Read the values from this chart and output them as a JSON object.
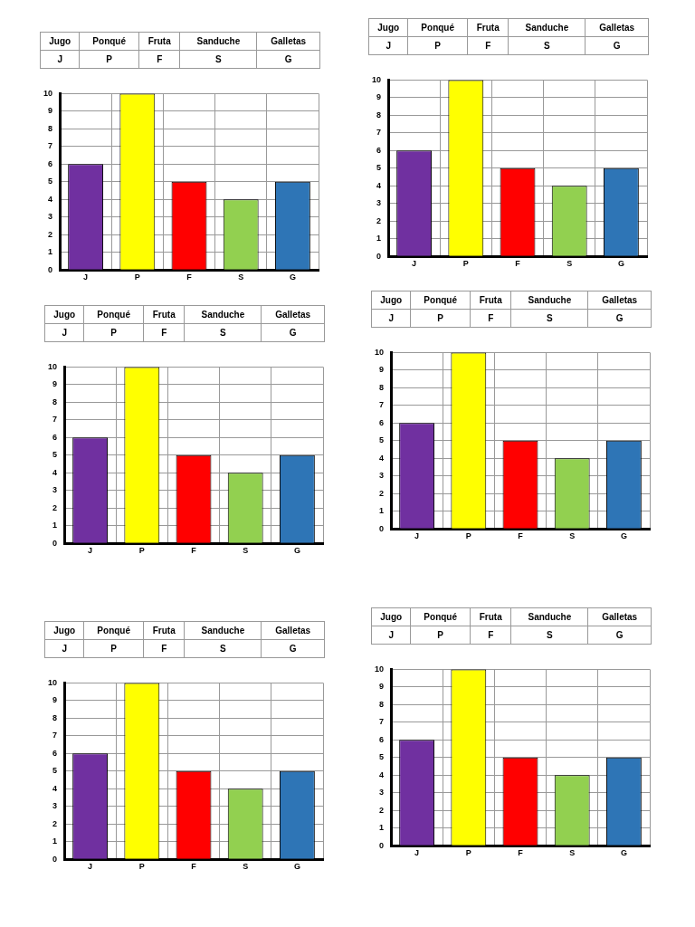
{
  "chart_data": [
    {
      "type": "bar",
      "categories": [
        "J",
        "P",
        "F",
        "S",
        "G"
      ],
      "values": [
        6,
        10,
        5,
        4,
        5
      ],
      "colors": [
        "#7030a0",
        "#ffff00",
        "#ff0000",
        "#92d050",
        "#2e75b6"
      ],
      "annotations": [
        "Jugo",
        "Ponqué",
        "Fruta",
        "Sanduche",
        "Galletas"
      ],
      "ylim": [
        0,
        10
      ],
      "yticks": [
        0,
        1,
        2,
        3,
        4,
        5,
        6,
        7,
        8,
        9,
        10
      ],
      "grid": true,
      "legend": false
    },
    {
      "type": "bar",
      "categories": [
        "J",
        "P",
        "F",
        "S",
        "G"
      ],
      "values": [
        6,
        10,
        5,
        4,
        5
      ],
      "colors": [
        "#7030a0",
        "#ffff00",
        "#ff0000",
        "#92d050",
        "#2e75b6"
      ],
      "annotations": [
        "Jugo",
        "Ponqué",
        "Fruta",
        "Sanduche",
        "Galletas"
      ],
      "ylim": [
        0,
        10
      ],
      "yticks": [
        0,
        1,
        2,
        3,
        4,
        5,
        6,
        7,
        8,
        9,
        10
      ],
      "grid": true,
      "legend": false
    },
    {
      "type": "bar",
      "categories": [
        "J",
        "P",
        "F",
        "S",
        "G"
      ],
      "values": [
        6,
        10,
        5,
        4,
        5
      ],
      "colors": [
        "#7030a0",
        "#ffff00",
        "#ff0000",
        "#92d050",
        "#2e75b6"
      ],
      "annotations": [
        "Jugo",
        "Ponqué",
        "Fruta",
        "Sanduche",
        "Galletas"
      ],
      "ylim": [
        0,
        10
      ],
      "yticks": [
        0,
        1,
        2,
        3,
        4,
        5,
        6,
        7,
        8,
        9,
        10
      ],
      "grid": true,
      "legend": false
    },
    {
      "type": "bar",
      "categories": [
        "J",
        "P",
        "F",
        "S",
        "G"
      ],
      "values": [
        6,
        10,
        5,
        4,
        5
      ],
      "colors": [
        "#7030a0",
        "#ffff00",
        "#ff0000",
        "#92d050",
        "#2e75b6"
      ],
      "annotations": [
        "Jugo",
        "Ponqué",
        "Fruta",
        "Sanduche",
        "Galletas"
      ],
      "ylim": [
        0,
        10
      ],
      "yticks": [
        0,
        1,
        2,
        3,
        4,
        5,
        6,
        7,
        8,
        9,
        10
      ],
      "grid": true,
      "legend": false
    },
    {
      "type": "bar",
      "categories": [
        "J",
        "P",
        "F",
        "S",
        "G"
      ],
      "values": [
        6,
        10,
        5,
        4,
        5
      ],
      "colors": [
        "#7030a0",
        "#ffff00",
        "#ff0000",
        "#92d050",
        "#2e75b6"
      ],
      "annotations": [
        "Jugo",
        "Ponqué",
        "Fruta",
        "Sanduche",
        "Galletas"
      ],
      "ylim": [
        0,
        10
      ],
      "yticks": [
        0,
        1,
        2,
        3,
        4,
        5,
        6,
        7,
        8,
        9,
        10
      ],
      "grid": true,
      "legend": false
    },
    {
      "type": "bar",
      "categories": [
        "J",
        "P",
        "F",
        "S",
        "G"
      ],
      "values": [
        6,
        10,
        5,
        4,
        5
      ],
      "colors": [
        "#7030a0",
        "#ffff00",
        "#ff0000",
        "#92d050",
        "#2e75b6"
      ],
      "annotations": [
        "Jugo",
        "Ponqué",
        "Fruta",
        "Sanduche",
        "Galletas"
      ],
      "ylim": [
        0,
        10
      ],
      "yticks": [
        0,
        1,
        2,
        3,
        4,
        5,
        6,
        7,
        8,
        9,
        10
      ],
      "grid": true,
      "legend": false
    }
  ]
}
